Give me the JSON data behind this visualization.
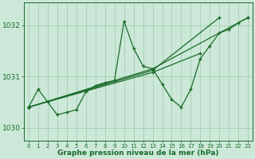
{
  "xlabel": "Graphe pression niveau de la mer (hPa)",
  "background_color": "#cce8d8",
  "grid_color": "#99ccaa",
  "line_color": "#1a6b2a",
  "ylim": [
    1029.75,
    1032.45
  ],
  "xlim": [
    -0.5,
    23.5
  ],
  "yticks": [
    1030,
    1031,
    1032
  ],
  "xticks": [
    0,
    1,
    2,
    3,
    4,
    5,
    6,
    7,
    8,
    9,
    10,
    11,
    12,
    13,
    14,
    15,
    16,
    17,
    18,
    19,
    20,
    21,
    22,
    23
  ],
  "line1": [
    1030.4,
    1030.75,
    1030.5,
    1030.25,
    1030.3,
    1030.35,
    1030.7,
    1030.82,
    1030.88,
    1030.92,
    1032.08,
    1031.55,
    1031.2,
    1031.15,
    1030.85,
    1030.55,
    1030.4,
    1030.75,
    1031.35,
    1031.6,
    1031.85,
    1031.92,
    1032.05,
    1032.15
  ],
  "line2_x": [
    0,
    13,
    23
  ],
  "line2_y": [
    1030.4,
    1031.15,
    1032.15
  ],
  "line3_x": [
    0,
    13,
    20
  ],
  "line3_y": [
    1030.4,
    1031.12,
    1032.15
  ],
  "line4_x": [
    0,
    13,
    18
  ],
  "line4_y": [
    1030.4,
    1031.08,
    1031.45
  ],
  "ylabel_fontsize": 6.5,
  "xlabel_fontsize": 6.5,
  "tick_fontsize": 5.0
}
